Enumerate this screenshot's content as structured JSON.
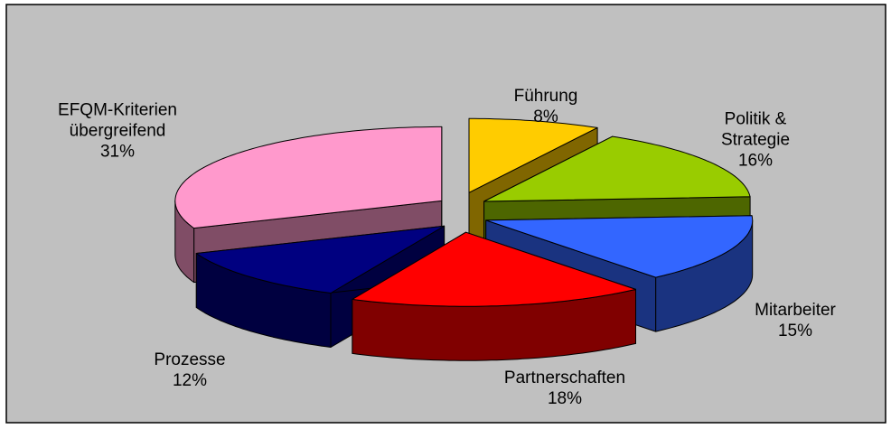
{
  "chart_data": {
    "type": "pie",
    "categories": [
      "Führung",
      "Politik & Strategie",
      "Mitarbeiter",
      "Partnerschaften",
      "Prozesse",
      "EFQM-Kriterien übergreifend"
    ],
    "values": [
      8,
      16,
      15,
      18,
      12,
      31
    ],
    "value_labels": [
      "8%",
      "16%",
      "15%",
      "18%",
      "12%",
      "31%"
    ],
    "colors": [
      "#ffcc00",
      "#99cc00",
      "#3366ff",
      "#ff0000",
      "#000080",
      "#ff99cc"
    ],
    "exploded": true,
    "three_d": true
  }
}
